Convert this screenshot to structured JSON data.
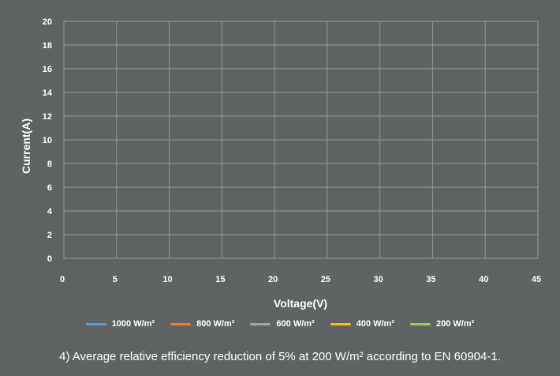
{
  "chart_data": {
    "type": "line",
    "title": "",
    "xlabel": "Voltage(V)",
    "ylabel": "Current(A)",
    "xlim": [
      0,
      45
    ],
    "ylim": [
      0,
      20
    ],
    "x_ticks": [
      "0",
      "5",
      "10",
      "15",
      "20",
      "25",
      "30",
      "35",
      "40",
      "45"
    ],
    "y_ticks": [
      "0",
      "2",
      "4",
      "6",
      "8",
      "10",
      "12",
      "14",
      "16",
      "18",
      "20"
    ],
    "grid": true,
    "legend_position": "bottom",
    "series": [
      {
        "name": "1000 W/m²",
        "color": "#5b9bd5",
        "points": []
      },
      {
        "name": "800 W/m²",
        "color": "#ed7d31",
        "points": []
      },
      {
        "name": "600 W/m²",
        "color": "#a5a5a5",
        "points": []
      },
      {
        "name": "400 W/m²",
        "color": "#ffc000",
        "points": []
      },
      {
        "name": "200 W/m²",
        "color": "#92d050",
        "points": []
      }
    ]
  },
  "footnote": {
    "text": "4) Average relative efficiency reduction of 5% at 200 W/m² according to EN 60904-1."
  }
}
